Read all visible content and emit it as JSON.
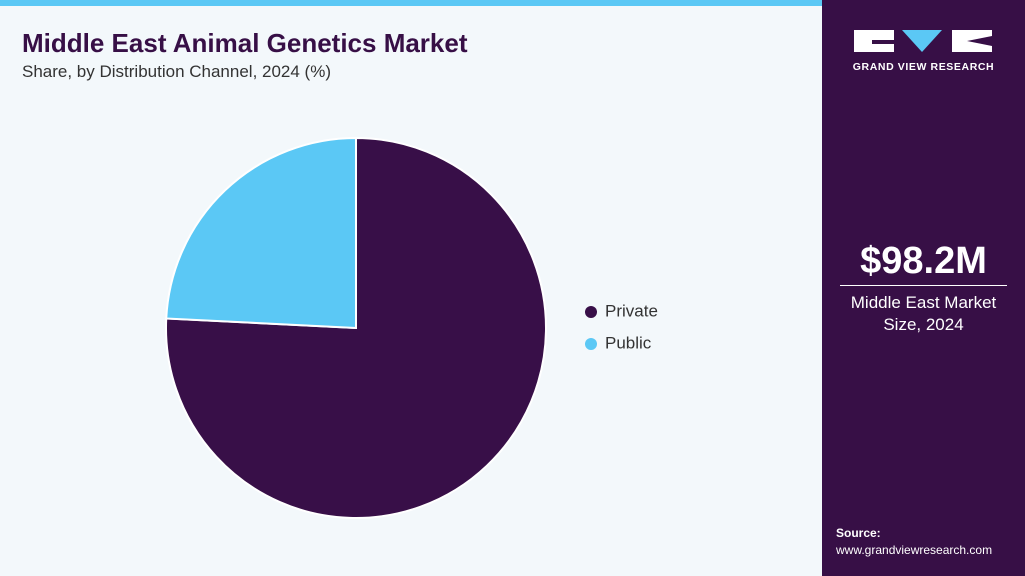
{
  "chart_data": {
    "type": "pie",
    "title": "Middle East Animal Genetics Market",
    "subtitle": "Share, by Distribution Channel, 2024 (%)",
    "categories": [
      "Private",
      "Public"
    ],
    "values": [
      75.8,
      24.2
    ],
    "colors": [
      "#380f48",
      "#5bc8f5"
    ]
  },
  "sidebar": {
    "logo_text": "GRAND VIEW RESEARCH",
    "market_value": "$98.2M",
    "market_label": "Middle East Market Size, 2024",
    "source_label": "Source:",
    "source_url": "www.grandviewresearch.com"
  }
}
